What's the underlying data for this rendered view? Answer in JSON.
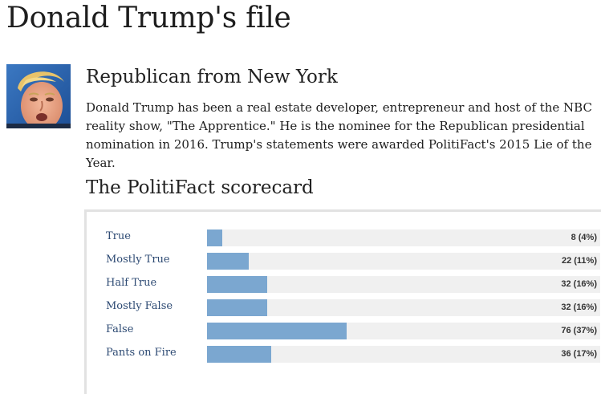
{
  "page": {
    "title": "Donald Trump's file"
  },
  "profile": {
    "affiliation": "Republican from New York",
    "bio": "Donald Trump has been a real estate developer, entrepreneur and host of the NBC reality show, \"The Apprentice.\" He is the nominee for the Republican presidential nomination in 2016. Trump's statements were awarded PolitiFact's 2015 Lie of the Year."
  },
  "scorecard": {
    "title": "The PolitiFact scorecard",
    "rows": [
      {
        "label": "True",
        "count": "8 (4%)",
        "percent": 4
      },
      {
        "label": "Mostly True",
        "count": "22 (11%)",
        "percent": 11
      },
      {
        "label": "Half True",
        "count": "32 (16%)",
        "percent": 16
      },
      {
        "label": "Mostly False",
        "count": "32 (16%)",
        "percent": 16
      },
      {
        "label": "False",
        "count": "76 (37%)",
        "percent": 37
      },
      {
        "label": "Pants on Fire",
        "count": "36 (17%)",
        "percent": 17
      }
    ]
  },
  "colors": {
    "bar_fill": "#7ba7d0",
    "bar_track": "#f0f0f0",
    "label_link": "#2d4a73"
  }
}
